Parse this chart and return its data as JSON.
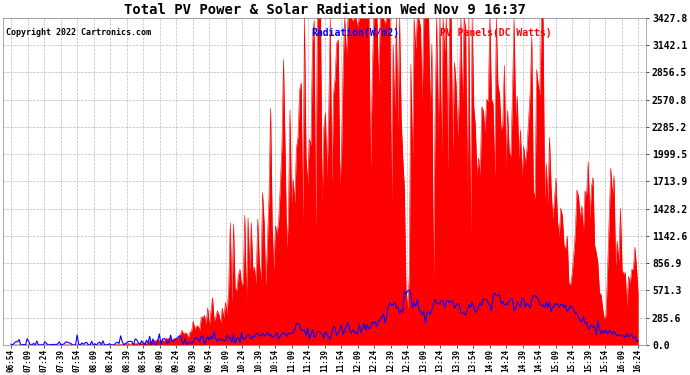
{
  "title": "Total PV Power & Solar Radiation Wed Nov 9 16:37",
  "copyright": "Copyright 2022 Cartronics.com",
  "legend_radiation": "Radiation(W/m2)",
  "legend_pv": "PV Panels(DC Watts)",
  "yticks": [
    0.0,
    285.6,
    571.3,
    856.9,
    1142.6,
    1428.2,
    1713.9,
    1999.5,
    2285.2,
    2570.8,
    2856.5,
    3142.1,
    3427.8
  ],
  "ylim": [
    0,
    3427.8
  ],
  "bg_color": "#ffffff",
  "pv_color": "#ff0000",
  "radiation_color": "#0000ff",
  "grid_color": "#aaaaaa",
  "title_color": "#000000",
  "copyright_color": "#000000",
  "xtick_labels": [
    "06:54",
    "07:09",
    "07:24",
    "07:39",
    "07:54",
    "08:09",
    "08:24",
    "08:39",
    "08:54",
    "09:09",
    "09:24",
    "09:39",
    "09:54",
    "10:09",
    "10:24",
    "10:39",
    "10:54",
    "11:09",
    "11:24",
    "11:39",
    "11:54",
    "12:09",
    "12:24",
    "12:39",
    "12:54",
    "13:09",
    "13:24",
    "13:39",
    "13:54",
    "14:09",
    "14:24",
    "14:39",
    "14:54",
    "15:09",
    "15:24",
    "15:39",
    "15:54",
    "16:09",
    "16:24"
  ]
}
